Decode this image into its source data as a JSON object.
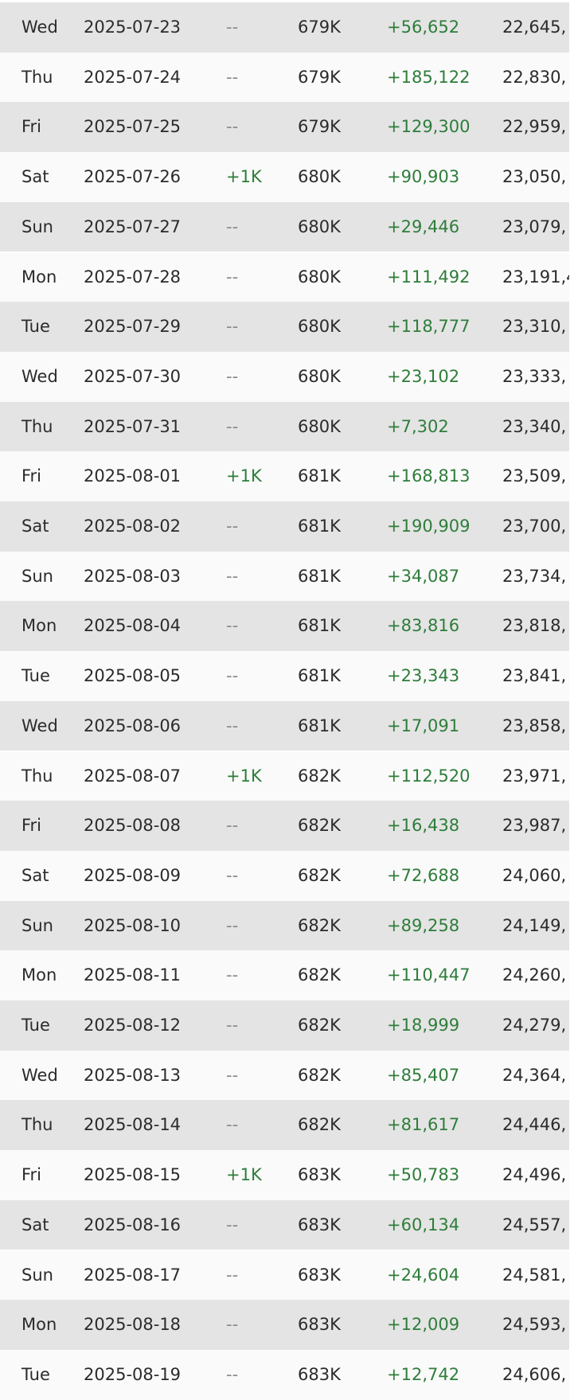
{
  "table": {
    "rows": [
      [
        "Wed",
        "2025-07-23",
        "--",
        "679K",
        "+56,652",
        "22,645,"
      ],
      [
        "Thu",
        "2025-07-24",
        "--",
        "679K",
        "+185,122",
        "22,830,"
      ],
      [
        "Fri",
        "2025-07-25",
        "--",
        "679K",
        "+129,300",
        "22,959,"
      ],
      [
        "Sat",
        "2025-07-26",
        "+1K",
        "680K",
        "+90,903",
        "23,050,"
      ],
      [
        "Sun",
        "2025-07-27",
        "--",
        "680K",
        "+29,446",
        "23,079,"
      ],
      [
        "Mon",
        "2025-07-28",
        "--",
        "680K",
        "+111,492",
        "23,191,4"
      ],
      [
        "Tue",
        "2025-07-29",
        "--",
        "680K",
        "+118,777",
        "23,310,"
      ],
      [
        "Wed",
        "2025-07-30",
        "--",
        "680K",
        "+23,102",
        "23,333,"
      ],
      [
        "Thu",
        "2025-07-31",
        "--",
        "680K",
        "+7,302",
        "23,340,"
      ],
      [
        "Fri",
        "2025-08-01",
        "+1K",
        "681K",
        "+168,813",
        "23,509,"
      ],
      [
        "Sat",
        "2025-08-02",
        "--",
        "681K",
        "+190,909",
        "23,700,"
      ],
      [
        "Sun",
        "2025-08-03",
        "--",
        "681K",
        "+34,087",
        "23,734,"
      ],
      [
        "Mon",
        "2025-08-04",
        "--",
        "681K",
        "+83,816",
        "23,818,"
      ],
      [
        "Tue",
        "2025-08-05",
        "--",
        "681K",
        "+23,343",
        "23,841,"
      ],
      [
        "Wed",
        "2025-08-06",
        "--",
        "681K",
        "+17,091",
        "23,858,"
      ],
      [
        "Thu",
        "2025-08-07",
        "+1K",
        "682K",
        "+112,520",
        "23,971,"
      ],
      [
        "Fri",
        "2025-08-08",
        "--",
        "682K",
        "+16,438",
        "23,987,"
      ],
      [
        "Sat",
        "2025-08-09",
        "--",
        "682K",
        "+72,688",
        "24,060,"
      ],
      [
        "Sun",
        "2025-08-10",
        "--",
        "682K",
        "+89,258",
        "24,149,"
      ],
      [
        "Mon",
        "2025-08-11",
        "--",
        "682K",
        "+110,447",
        "24,260,"
      ],
      [
        "Tue",
        "2025-08-12",
        "--",
        "682K",
        "+18,999",
        "24,279,"
      ],
      [
        "Wed",
        "2025-08-13",
        "--",
        "682K",
        "+85,407",
        "24,364,"
      ],
      [
        "Thu",
        "2025-08-14",
        "--",
        "682K",
        "+81,617",
        "24,446,"
      ],
      [
        "Fri",
        "2025-08-15",
        "+1K",
        "683K",
        "+50,783",
        "24,496,"
      ],
      [
        "Sat",
        "2025-08-16",
        "--",
        "683K",
        "+60,134",
        "24,557,"
      ],
      [
        "Sun",
        "2025-08-17",
        "--",
        "683K",
        "+24,604",
        "24,581,"
      ],
      [
        "Mon",
        "2025-08-18",
        "--",
        "683K",
        "+12,009",
        "24,593,"
      ],
      [
        "Tue",
        "2025-08-19",
        "--",
        "683K",
        "+12,742",
        "24,606,"
      ]
    ]
  }
}
